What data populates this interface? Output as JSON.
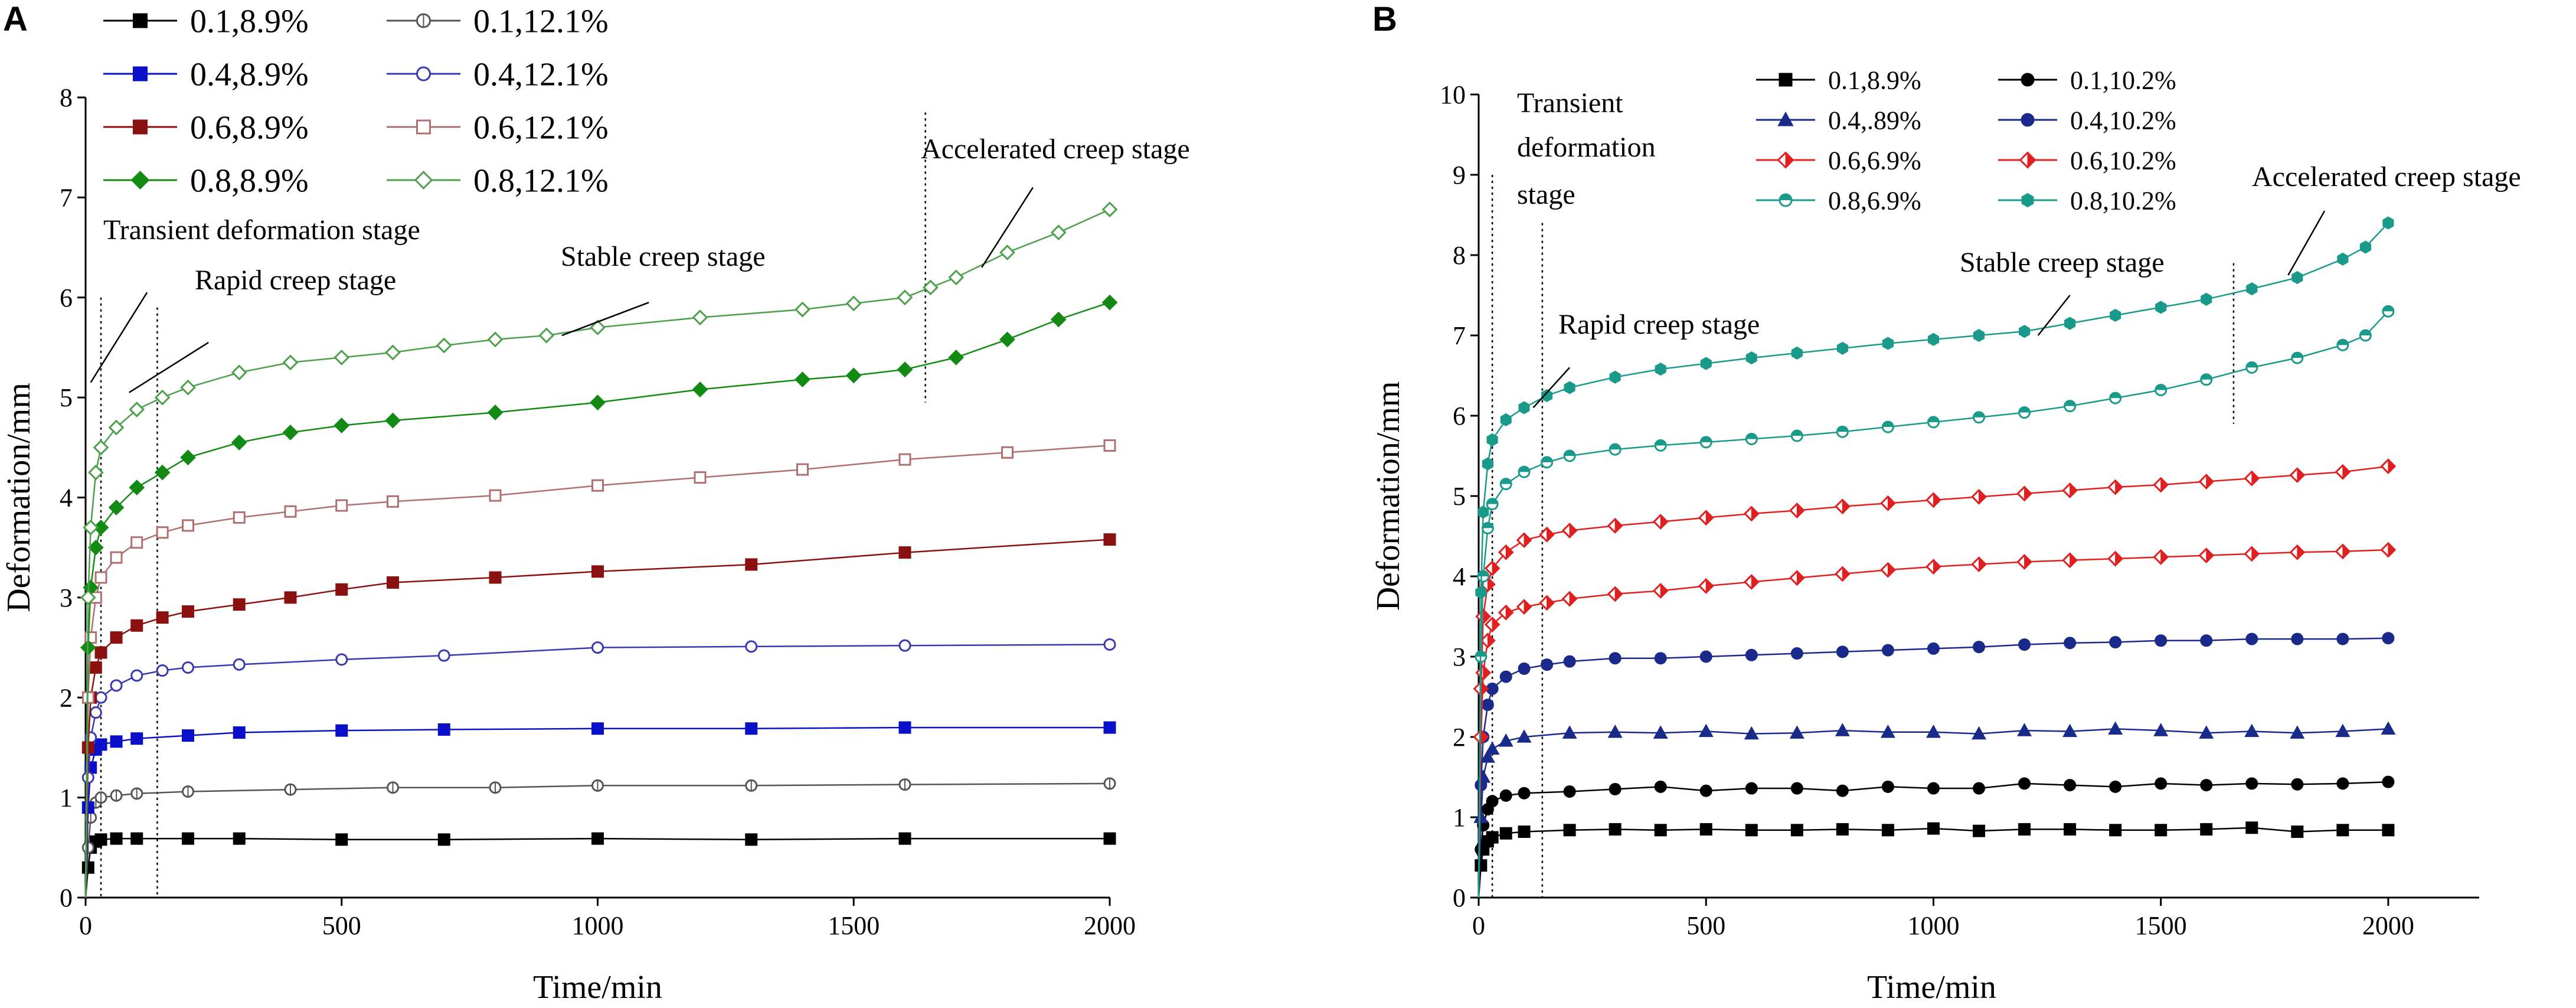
{
  "chart_data": [
    {
      "panel": "A",
      "type": "line",
      "xlabel": "Time/min",
      "ylabel": "Deformation/mm",
      "xlim": [
        0,
        2000
      ],
      "ylim": [
        0,
        8
      ],
      "xticks": [
        0,
        500,
        1000,
        1500,
        2000
      ],
      "yticks": [
        0,
        1,
        2,
        3,
        4,
        5,
        6,
        7,
        8
      ],
      "legend": [
        "0.1,8.9%",
        "0.1,12.1%",
        "0.4,8.9%",
        "0.4,12.1%",
        "0.6,8.9%",
        "0.6,12.1%",
        "0.8,8.9%",
        "0.8,12.1%"
      ],
      "series": [
        {
          "name": "0.1,8.9%",
          "color": "#000000",
          "marker": "square",
          "fill": "solid",
          "x": [
            0,
            5,
            10,
            20,
            30,
            60,
            100,
            200,
            300,
            500,
            700,
            1000,
            1300,
            1600,
            2000
          ],
          "y": [
            0,
            0.3,
            0.5,
            0.56,
            0.58,
            0.59,
            0.59,
            0.59,
            0.59,
            0.58,
            0.58,
            0.59,
            0.58,
            0.59,
            0.59
          ]
        },
        {
          "name": "0.1,12.1%",
          "color": "#555555",
          "marker": "circle-bar",
          "fill": "hollow",
          "x": [
            0,
            5,
            10,
            20,
            30,
            60,
            100,
            200,
            400,
            600,
            800,
            1000,
            1300,
            1600,
            2000
          ],
          "y": [
            0,
            0.5,
            0.8,
            0.95,
            1.0,
            1.02,
            1.04,
            1.06,
            1.08,
            1.1,
            1.1,
            1.12,
            1.12,
            1.13,
            1.14
          ]
        },
        {
          "name": "0.4,8.9%",
          "color": "#0a10c8",
          "marker": "square",
          "fill": "solid",
          "x": [
            0,
            5,
            10,
            20,
            30,
            60,
            100,
            200,
            300,
            500,
            700,
            1000,
            1300,
            1600,
            2000
          ],
          "y": [
            0,
            0.9,
            1.3,
            1.48,
            1.53,
            1.56,
            1.59,
            1.62,
            1.65,
            1.67,
            1.68,
            1.69,
            1.69,
            1.7,
            1.7
          ]
        },
        {
          "name": "0.4,12.1%",
          "color": "#3838b0",
          "marker": "circle",
          "fill": "hollow",
          "x": [
            0,
            5,
            10,
            20,
            30,
            60,
            100,
            150,
            200,
            300,
            500,
            700,
            1000,
            1300,
            1600,
            2000
          ],
          "y": [
            0,
            1.2,
            1.6,
            1.85,
            2.0,
            2.12,
            2.22,
            2.27,
            2.3,
            2.33,
            2.38,
            2.42,
            2.5,
            2.51,
            2.52,
            2.53
          ]
        },
        {
          "name": "0.6,8.9%",
          "color": "#8b1010",
          "marker": "square",
          "fill": "solid",
          "x": [
            0,
            5,
            10,
            20,
            30,
            60,
            100,
            150,
            200,
            300,
            400,
            500,
            600,
            800,
            1000,
            1300,
            1600,
            2000
          ],
          "y": [
            0,
            1.5,
            2.0,
            2.3,
            2.45,
            2.6,
            2.72,
            2.8,
            2.86,
            2.93,
            3.0,
            3.08,
            3.15,
            3.2,
            3.26,
            3.33,
            3.45,
            3.58
          ]
        },
        {
          "name": "0.6,12.1%",
          "color": "#b07070",
          "marker": "square",
          "fill": "hollow",
          "x": [
            0,
            5,
            10,
            20,
            30,
            60,
            100,
            150,
            200,
            300,
            400,
            500,
            600,
            800,
            1000,
            1200,
            1400,
            1600,
            1800,
            2000
          ],
          "y": [
            0,
            2.0,
            2.6,
            3.0,
            3.2,
            3.4,
            3.55,
            3.65,
            3.72,
            3.8,
            3.86,
            3.92,
            3.96,
            4.02,
            4.12,
            4.2,
            4.28,
            4.38,
            4.45,
            4.52
          ]
        },
        {
          "name": "0.8,8.9%",
          "color": "#138a13",
          "marker": "diamond",
          "fill": "solid",
          "x": [
            0,
            5,
            10,
            20,
            30,
            60,
            100,
            150,
            200,
            300,
            400,
            500,
            600,
            800,
            1000,
            1200,
            1400,
            1500,
            1600,
            1700,
            1800,
            1900,
            2000
          ],
          "y": [
            0,
            2.5,
            3.1,
            3.5,
            3.7,
            3.9,
            4.1,
            4.25,
            4.4,
            4.55,
            4.65,
            4.72,
            4.77,
            4.85,
            4.95,
            5.08,
            5.18,
            5.22,
            5.28,
            5.4,
            5.58,
            5.78,
            5.95
          ]
        },
        {
          "name": "0.8,12.1%",
          "color": "#4ca04c",
          "marker": "diamond",
          "fill": "hollow",
          "x": [
            0,
            5,
            10,
            20,
            30,
            60,
            100,
            150,
            200,
            300,
            400,
            500,
            600,
            700,
            800,
            900,
            1000,
            1200,
            1400,
            1500,
            1600,
            1650,
            1700,
            1800,
            1900,
            2000
          ],
          "y": [
            0,
            3.0,
            3.7,
            4.25,
            4.5,
            4.7,
            4.88,
            5.0,
            5.1,
            5.25,
            5.35,
            5.4,
            5.45,
            5.52,
            5.58,
            5.62,
            5.7,
            5.8,
            5.88,
            5.94,
            6.0,
            6.1,
            6.2,
            6.45,
            6.65,
            6.88
          ]
        }
      ],
      "stage_lines_x": [
        30,
        140,
        1640
      ],
      "annotations": [
        "Transient deformation stage",
        "Rapid creep stage",
        "Stable creep stage",
        "Accelerated creep stage"
      ]
    },
    {
      "panel": "B",
      "type": "line",
      "xlabel": "Time/min",
      "ylabel": "Deformation/mm",
      "xlim": [
        0,
        2200
      ],
      "ylim": [
        0,
        10
      ],
      "xticks": [
        0,
        500,
        1000,
        1500,
        2000
      ],
      "yticks": [
        0,
        1,
        2,
        3,
        4,
        5,
        6,
        7,
        8,
        9,
        10
      ],
      "legend": [
        "0.1,8.9%",
        "0.1,10.2%",
        "0.4,.89%",
        "0.4,10.2%",
        "0.6,6.9%",
        "0.6,10.2%",
        "0.8,6.9%",
        "0.8,10.2%"
      ],
      "series": [
        {
          "name": "0.1,8.9%",
          "color": "#000000",
          "marker": "square",
          "fill": "solid",
          "x": [
            0,
            5,
            10,
            20,
            30,
            60,
            100,
            200,
            300,
            400,
            500,
            600,
            700,
            800,
            900,
            1000,
            1100,
            1200,
            1300,
            1400,
            1500,
            1600,
            1700,
            1800,
            1900,
            2000
          ],
          "y": [
            0,
            0.4,
            0.6,
            0.7,
            0.75,
            0.8,
            0.82,
            0.84,
            0.85,
            0.84,
            0.85,
            0.84,
            0.84,
            0.85,
            0.84,
            0.86,
            0.83,
            0.85,
            0.85,
            0.84,
            0.84,
            0.85,
            0.87,
            0.82,
            0.84,
            0.84
          ]
        },
        {
          "name": "0.1,10.2%",
          "color": "#000000",
          "marker": "circle",
          "fill": "solid",
          "x": [
            0,
            5,
            10,
            20,
            30,
            60,
            100,
            200,
            300,
            400,
            500,
            600,
            700,
            800,
            900,
            1000,
            1100,
            1200,
            1300,
            1400,
            1500,
            1600,
            1700,
            1800,
            1900,
            2000
          ],
          "y": [
            0,
            0.6,
            0.9,
            1.1,
            1.2,
            1.27,
            1.3,
            1.32,
            1.35,
            1.38,
            1.33,
            1.36,
            1.36,
            1.33,
            1.38,
            1.36,
            1.36,
            1.42,
            1.4,
            1.38,
            1.42,
            1.4,
            1.42,
            1.41,
            1.42,
            1.44
          ]
        },
        {
          "name": "0.4,.89%",
          "color": "#1a2a8a",
          "marker": "triangle",
          "fill": "solid",
          "x": [
            0,
            5,
            10,
            20,
            30,
            60,
            100,
            200,
            300,
            400,
            500,
            600,
            700,
            800,
            900,
            1000,
            1100,
            1200,
            1300,
            1400,
            1500,
            1600,
            1700,
            1800,
            1900,
            2000
          ],
          "y": [
            0,
            1.0,
            1.5,
            1.75,
            1.85,
            1.95,
            2.0,
            2.05,
            2.06,
            2.05,
            2.07,
            2.04,
            2.05,
            2.08,
            2.06,
            2.06,
            2.04,
            2.08,
            2.07,
            2.1,
            2.08,
            2.05,
            2.07,
            2.05,
            2.07,
            2.1
          ]
        },
        {
          "name": "0.4,10.2%",
          "color": "#1a2a8a",
          "marker": "circle",
          "fill": "solid",
          "x": [
            0,
            5,
            10,
            20,
            30,
            60,
            100,
            150,
            200,
            300,
            400,
            500,
            600,
            700,
            800,
            900,
            1000,
            1100,
            1200,
            1300,
            1400,
            1500,
            1600,
            1700,
            1800,
            1900,
            2000
          ],
          "y": [
            0,
            1.4,
            2.0,
            2.4,
            2.6,
            2.75,
            2.85,
            2.9,
            2.94,
            2.98,
            2.98,
            3.0,
            3.02,
            3.04,
            3.06,
            3.08,
            3.1,
            3.12,
            3.15,
            3.17,
            3.18,
            3.2,
            3.2,
            3.22,
            3.22,
            3.22,
            3.23
          ]
        },
        {
          "name": "0.6,6.9%",
          "color": "#e02020",
          "marker": "diamond-half",
          "fill": "half",
          "x": [
            0,
            5,
            10,
            20,
            30,
            60,
            100,
            150,
            200,
            300,
            400,
            500,
            600,
            700,
            800,
            900,
            1000,
            1100,
            1200,
            1300,
            1400,
            1500,
            1600,
            1700,
            1800,
            1900,
            2000
          ],
          "y": [
            0,
            2.0,
            2.8,
            3.2,
            3.4,
            3.55,
            3.62,
            3.67,
            3.72,
            3.78,
            3.82,
            3.88,
            3.93,
            3.98,
            4.03,
            4.08,
            4.12,
            4.15,
            4.18,
            4.2,
            4.22,
            4.24,
            4.26,
            4.28,
            4.3,
            4.31,
            4.33
          ]
        },
        {
          "name": "0.6,10.2%",
          "color": "#e02020",
          "marker": "diamond-half",
          "fill": "half",
          "x": [
            0,
            5,
            10,
            20,
            30,
            60,
            100,
            150,
            200,
            300,
            400,
            500,
            600,
            700,
            800,
            900,
            1000,
            1100,
            1200,
            1300,
            1400,
            1500,
            1600,
            1700,
            1800,
            1900,
            2000
          ],
          "y": [
            0,
            2.6,
            3.5,
            3.9,
            4.1,
            4.3,
            4.45,
            4.52,
            4.57,
            4.63,
            4.68,
            4.73,
            4.78,
            4.82,
            4.87,
            4.91,
            4.95,
            4.99,
            5.03,
            5.07,
            5.11,
            5.14,
            5.18,
            5.22,
            5.26,
            5.3,
            5.37
          ]
        },
        {
          "name": "0.8,6.9%",
          "color": "#1a9a8a",
          "marker": "circle-half",
          "fill": "half",
          "x": [
            0,
            5,
            10,
            20,
            30,
            60,
            100,
            150,
            200,
            300,
            400,
            500,
            600,
            700,
            800,
            900,
            1000,
            1100,
            1200,
            1300,
            1400,
            1500,
            1600,
            1700,
            1800,
            1900,
            1950,
            2000
          ],
          "y": [
            0,
            3.0,
            4.0,
            4.6,
            4.9,
            5.15,
            5.3,
            5.42,
            5.5,
            5.58,
            5.63,
            5.67,
            5.71,
            5.75,
            5.8,
            5.86,
            5.92,
            5.98,
            6.04,
            6.12,
            6.22,
            6.32,
            6.45,
            6.6,
            6.72,
            6.88,
            7.0,
            7.3
          ]
        },
        {
          "name": "0.8,10.2%",
          "color": "#1a9a8a",
          "marker": "hexagon",
          "fill": "solid",
          "x": [
            0,
            5,
            10,
            20,
            30,
            60,
            100,
            150,
            200,
            300,
            400,
            500,
            600,
            700,
            800,
            900,
            1000,
            1100,
            1200,
            1300,
            1400,
            1500,
            1600,
            1700,
            1800,
            1900,
            1950,
            2000
          ],
          "y": [
            0,
            3.8,
            4.8,
            5.4,
            5.7,
            5.95,
            6.1,
            6.25,
            6.35,
            6.48,
            6.58,
            6.65,
            6.72,
            6.78,
            6.84,
            6.9,
            6.95,
            7.0,
            7.05,
            7.15,
            7.25,
            7.35,
            7.45,
            7.58,
            7.72,
            7.95,
            8.1,
            8.4
          ]
        }
      ],
      "stage_lines_x": [
        30,
        140,
        1660
      ],
      "annotations": [
        "Transient",
        "deformation",
        "stage",
        "Rapid creep stage",
        "Stable creep stage",
        "Accelerated creep stage"
      ]
    }
  ]
}
